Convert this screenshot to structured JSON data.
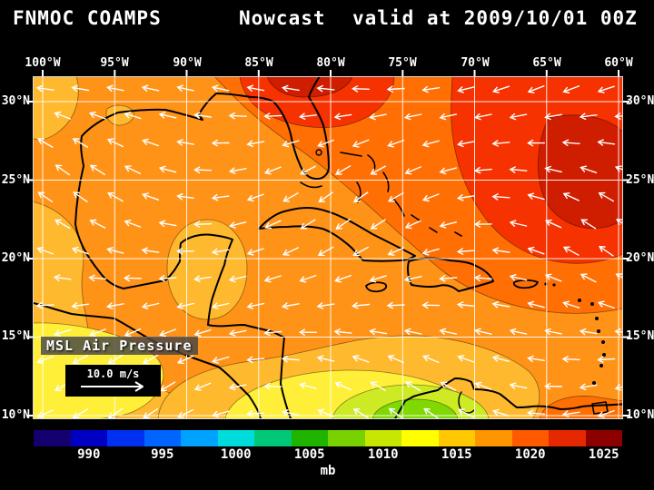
{
  "header": {
    "model": "FNMOC COAMPS",
    "product": "Nowcast",
    "valid": "valid at 2009/10/01 00Z"
  },
  "map": {
    "lon_labels": [
      "100°W",
      "95°W",
      "90°W",
      "85°W",
      "80°W",
      "75°W",
      "70°W",
      "65°W",
      "60°W"
    ],
    "lat_labels": [
      "30°N",
      "25°N",
      "20°N",
      "15°N",
      "10°N"
    ],
    "field_label": "MSL Air Pressure",
    "wind_scale": "10.0 m/s"
  },
  "colorbar": {
    "unit": "mb",
    "ticks": [
      "990",
      "995",
      "1000",
      "1005",
      "1010",
      "1015",
      "1020",
      "1025"
    ],
    "colors": [
      "#14006e",
      "#0000c3",
      "#0031f0",
      "#0064ff",
      "#00a2ff",
      "#00dcdc",
      "#00c878",
      "#1eb400",
      "#78d200",
      "#c8e600",
      "#ffff00",
      "#ffc800",
      "#ff9600",
      "#ff5a00",
      "#e62800",
      "#8c0000"
    ]
  },
  "wind_vectors": {
    "color": "#ffffff"
  },
  "chart_data": {
    "type": "heatmap",
    "title": "FNMOC COAMPS Nowcast valid at 2009/10/01 00Z",
    "field": "MSL Air Pressure",
    "unit": "mb",
    "colorbar_values": [
      990,
      995,
      1000,
      1005,
      1010,
      1015,
      1020,
      1025
    ],
    "lon_ticks_deg_west": [
      100,
      95,
      90,
      85,
      80,
      75,
      70,
      65,
      60
    ],
    "lat_ticks_deg_north": [
      30,
      25,
      20,
      15,
      10
    ],
    "wind_reference": "10.0 m/s",
    "legend_position": "bottom",
    "grid": true,
    "notes": "Filled sea-level-pressure contours over Gulf of Mexico and Caribbean with white wind vectors; high pressure ridge (red, ~1016-1022 mb) over northwest Atlantic and top-center, broad orange field ~1012-1015 mb, lower pressure (yellow to green, ~1004-1010 mb) over Central America and southwest Caribbean"
  }
}
